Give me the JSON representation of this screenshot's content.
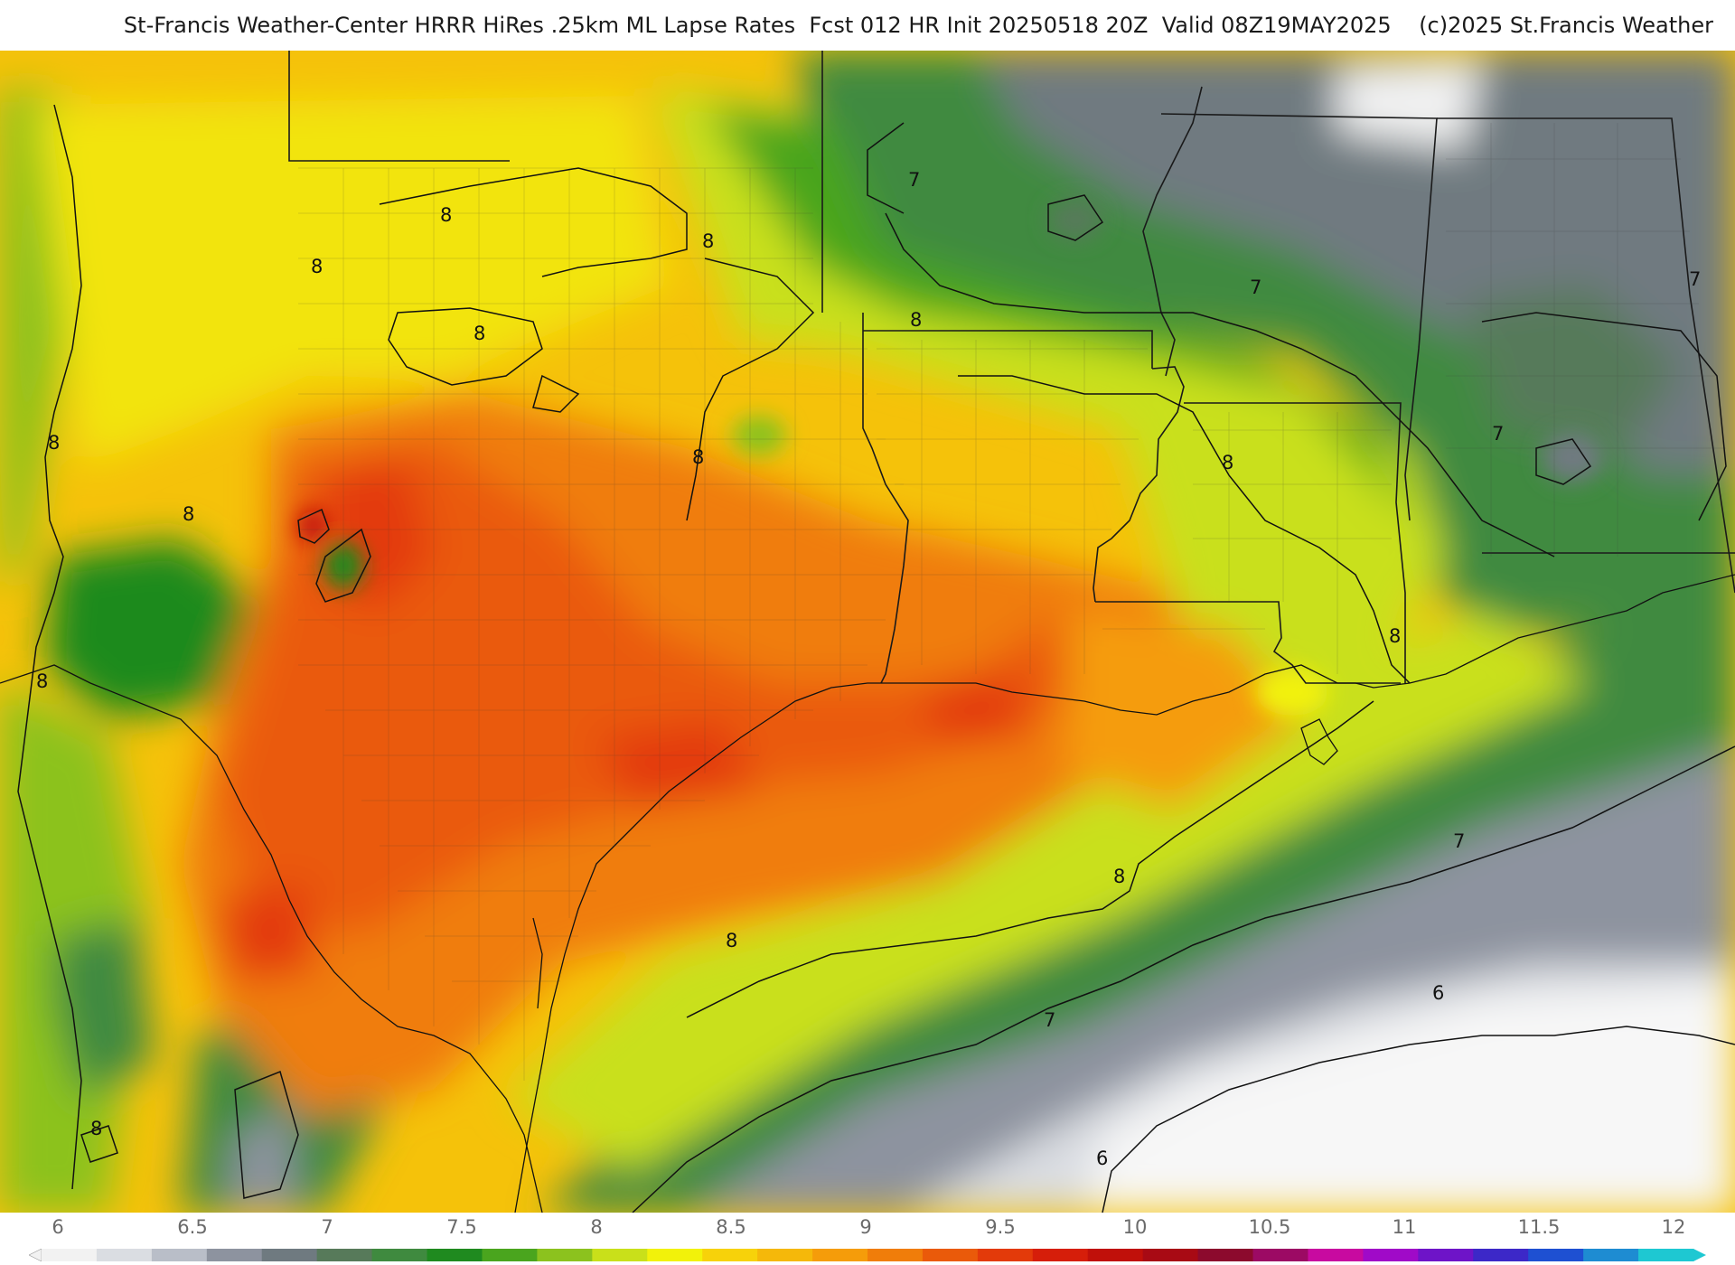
{
  "header": {
    "title": "St-Francis Weather-Center HRRR HiRes .25km ML Lapse Rates  Fcst 012 HR Init 20250518 20Z  Valid 08Z19MAY2025    (c)2025 St.Francis Weather"
  },
  "map": {
    "contour_labels": [
      "8",
      "8",
      "8",
      "8",
      "8",
      "8",
      "8",
      "8",
      "8",
      "8",
      "8",
      "8",
      "8",
      "8",
      "7",
      "7",
      "7",
      "7",
      "7",
      "7",
      "6",
      "6"
    ]
  },
  "legend": {
    "ticks": [
      "6",
      "6.5",
      "7",
      "7.5",
      "8",
      "8.5",
      "9",
      "9.5",
      "10",
      "10.5",
      "11",
      "11.5",
      "12"
    ],
    "colors": [
      "#f2f2f2",
      "#dadde2",
      "#b9bec8",
      "#8d939f",
      "#6f7a80",
      "#577a5a",
      "#3f8a3f",
      "#1f8a1f",
      "#4aa51e",
      "#8cc21e",
      "#c9e01a",
      "#f2f20a",
      "#f7d20a",
      "#f5b80a",
      "#f59c0a",
      "#f07d0a",
      "#ea5a0a",
      "#e33a0a",
      "#d61e0a",
      "#c0100a",
      "#a80a14",
      "#8c0a2d",
      "#9c0a64",
      "#c80aa0",
      "#a00ac8",
      "#6e14c8",
      "#3c28c8",
      "#1e50d2",
      "#1e8cd2",
      "#1ec8d2"
    ]
  }
}
